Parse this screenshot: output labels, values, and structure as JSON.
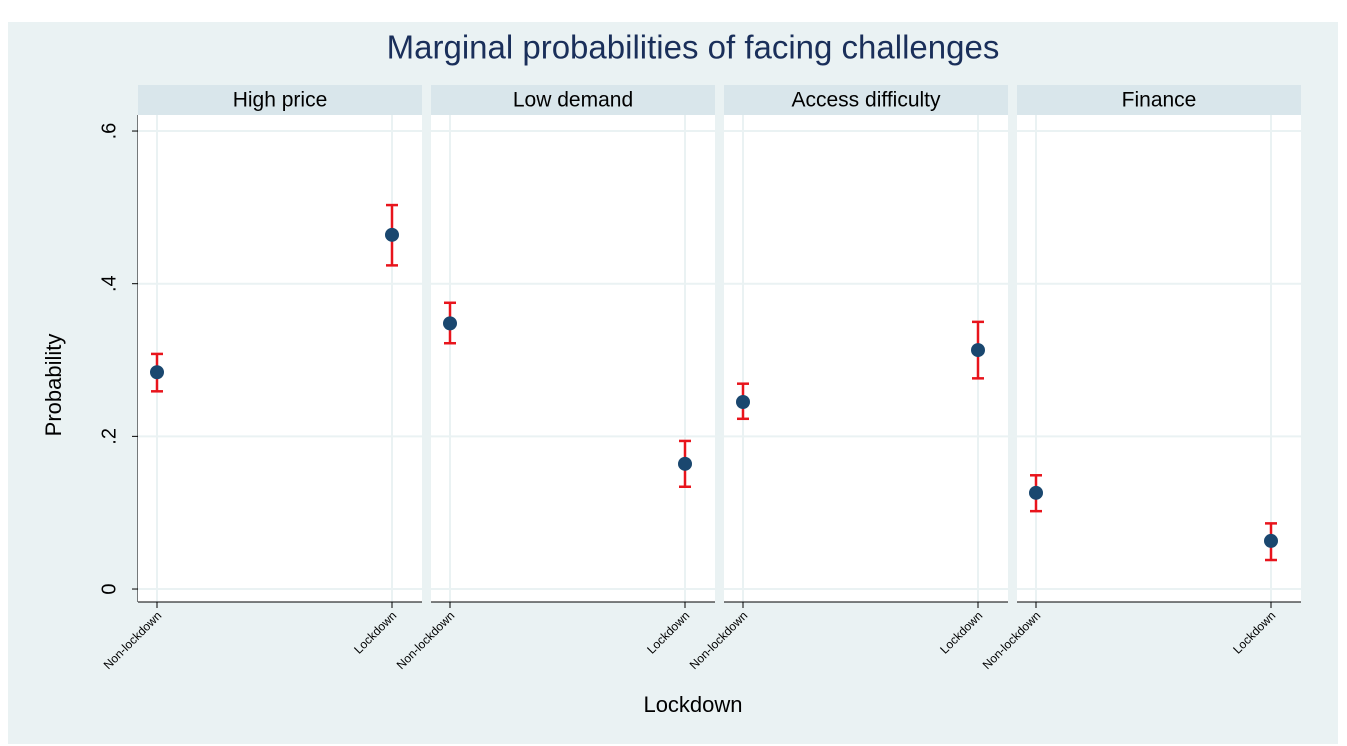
{
  "chart_data": {
    "type": "errorbar",
    "title": "Marginal probabilities of facing challenges",
    "x_label": "Lockdown",
    "y_label": "Probability",
    "categories": [
      "Non-lockdown",
      "Lockdown"
    ],
    "point_color": "#1a476f",
    "bar_color": "#e8141c",
    "ylim": [
      -0.017,
      0.621
    ],
    "yticks": [
      0,
      {
        "value": 0.2,
        "label": ".2"
      },
      {
        "value": 0.4,
        "label": ".4"
      },
      {
        "value": 0.6,
        "label": ".6"
      }
    ],
    "grid": true,
    "panels": [
      {
        "title": "High price",
        "values": [
          0.284,
          0.464
        ],
        "lower": [
          0.259,
          0.424
        ],
        "upper": [
          0.308,
          0.503
        ]
      },
      {
        "title": "Low demand",
        "values": [
          0.348,
          0.164
        ],
        "lower": [
          0.322,
          0.134
        ],
        "upper": [
          0.375,
          0.194
        ]
      },
      {
        "title": "Access difficulty",
        "values": [
          0.245,
          0.313
        ],
        "lower": [
          0.223,
          0.276
        ],
        "upper": [
          0.269,
          0.35
        ]
      },
      {
        "title": "Finance",
        "values": [
          0.126,
          0.063
        ],
        "lower": [
          0.102,
          0.038
        ],
        "upper": [
          0.149,
          0.086
        ]
      }
    ]
  }
}
